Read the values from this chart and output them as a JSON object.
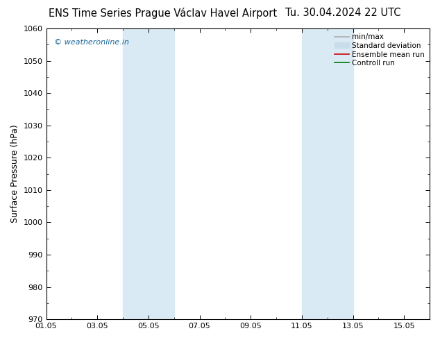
{
  "title_left": "ENS Time Series Prague Václav Havel Airport",
  "title_right": "Tu. 30.04.2024 22 UTC",
  "ylabel": "Surface Pressure (hPa)",
  "ylim": [
    970,
    1060
  ],
  "yticks": [
    970,
    980,
    990,
    1000,
    1010,
    1020,
    1030,
    1040,
    1050,
    1060
  ],
  "xlim_start": 0.0,
  "xlim_end": 15.0,
  "xtick_positions": [
    0,
    2,
    4,
    6,
    8,
    10,
    12,
    14
  ],
  "xtick_labels": [
    "01.05",
    "03.05",
    "05.05",
    "07.05",
    "09.05",
    "11.05",
    "13.05",
    "15.05"
  ],
  "shaded_bands": [
    {
      "xmin": 3.0,
      "xmax": 5.0
    },
    {
      "xmin": 10.0,
      "xmax": 12.0
    }
  ],
  "shade_color": "#daeaf5",
  "watermark": "© weatheronline.in",
  "watermark_color": "#1a6699",
  "bg_color": "#ffffff",
  "legend_entries": [
    {
      "label": "min/max",
      "color": "#aaaaaa",
      "lw": 1.2,
      "type": "line"
    },
    {
      "label": "Standard deviation",
      "color": "#c8dcea",
      "lw": 6,
      "type": "patch"
    },
    {
      "label": "Ensemble mean run",
      "color": "#cc0000",
      "lw": 1.2,
      "type": "line"
    },
    {
      "label": "Controll run",
      "color": "#007700",
      "lw": 1.2,
      "type": "line"
    }
  ],
  "title_fontsize": 10.5,
  "axis_label_fontsize": 9,
  "tick_fontsize": 8,
  "legend_fontsize": 7.5,
  "watermark_fontsize": 8
}
